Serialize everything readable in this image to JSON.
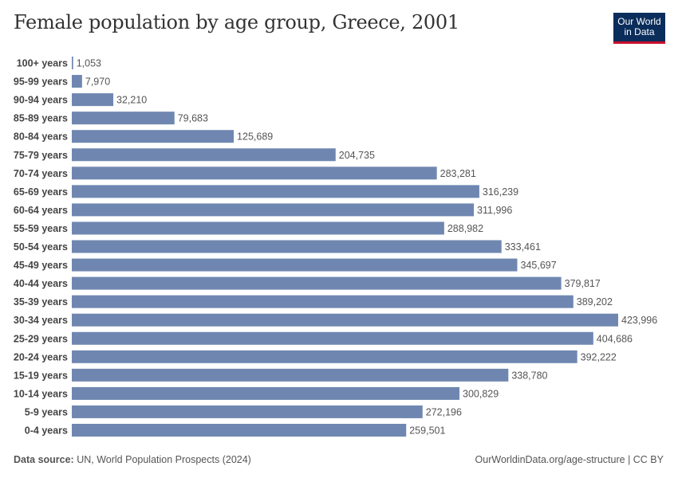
{
  "header": {
    "title": "Female population by age group, Greece, 2001",
    "logo_line1": "Our World",
    "logo_line2": "in Data"
  },
  "footer": {
    "source_label": "Data source:",
    "source_text": "UN, World Population Prospects (2024)",
    "credit": "OurWorldinData.org/age-structure | CC BY"
  },
  "colors": {
    "bar": "#6f87b0",
    "logo_bg": "#0b2d5b",
    "logo_accent": "#c8102e"
  },
  "chart_data": {
    "type": "bar",
    "orientation": "horizontal",
    "title": "Female population by age group, Greece, 2001",
    "xlabel": "",
    "ylabel": "",
    "xlim": [
      0,
      423996
    ],
    "categories": [
      "100+ years",
      "95-99 years",
      "90-94 years",
      "85-89 years",
      "80-84 years",
      "75-79 years",
      "70-74 years",
      "65-69 years",
      "60-64 years",
      "55-59 years",
      "50-54 years",
      "45-49 years",
      "40-44 years",
      "35-39 years",
      "30-34 years",
      "25-29 years",
      "20-24 years",
      "15-19 years",
      "10-14 years",
      "5-9 years",
      "0-4 years"
    ],
    "values": [
      1053,
      7970,
      32210,
      79683,
      125689,
      204735,
      283281,
      316239,
      311996,
      288982,
      333461,
      345697,
      379817,
      389202,
      423996,
      404686,
      392222,
      338780,
      300829,
      272196,
      259501
    ],
    "value_labels": [
      "1,053",
      "7,970",
      "32,210",
      "79,683",
      "125,689",
      "204,735",
      "283,281",
      "316,239",
      "311,996",
      "288,982",
      "333,461",
      "345,697",
      "379,817",
      "389,202",
      "423,996",
      "404,686",
      "392,222",
      "338,780",
      "300,829",
      "272,196",
      "259,501"
    ]
  }
}
